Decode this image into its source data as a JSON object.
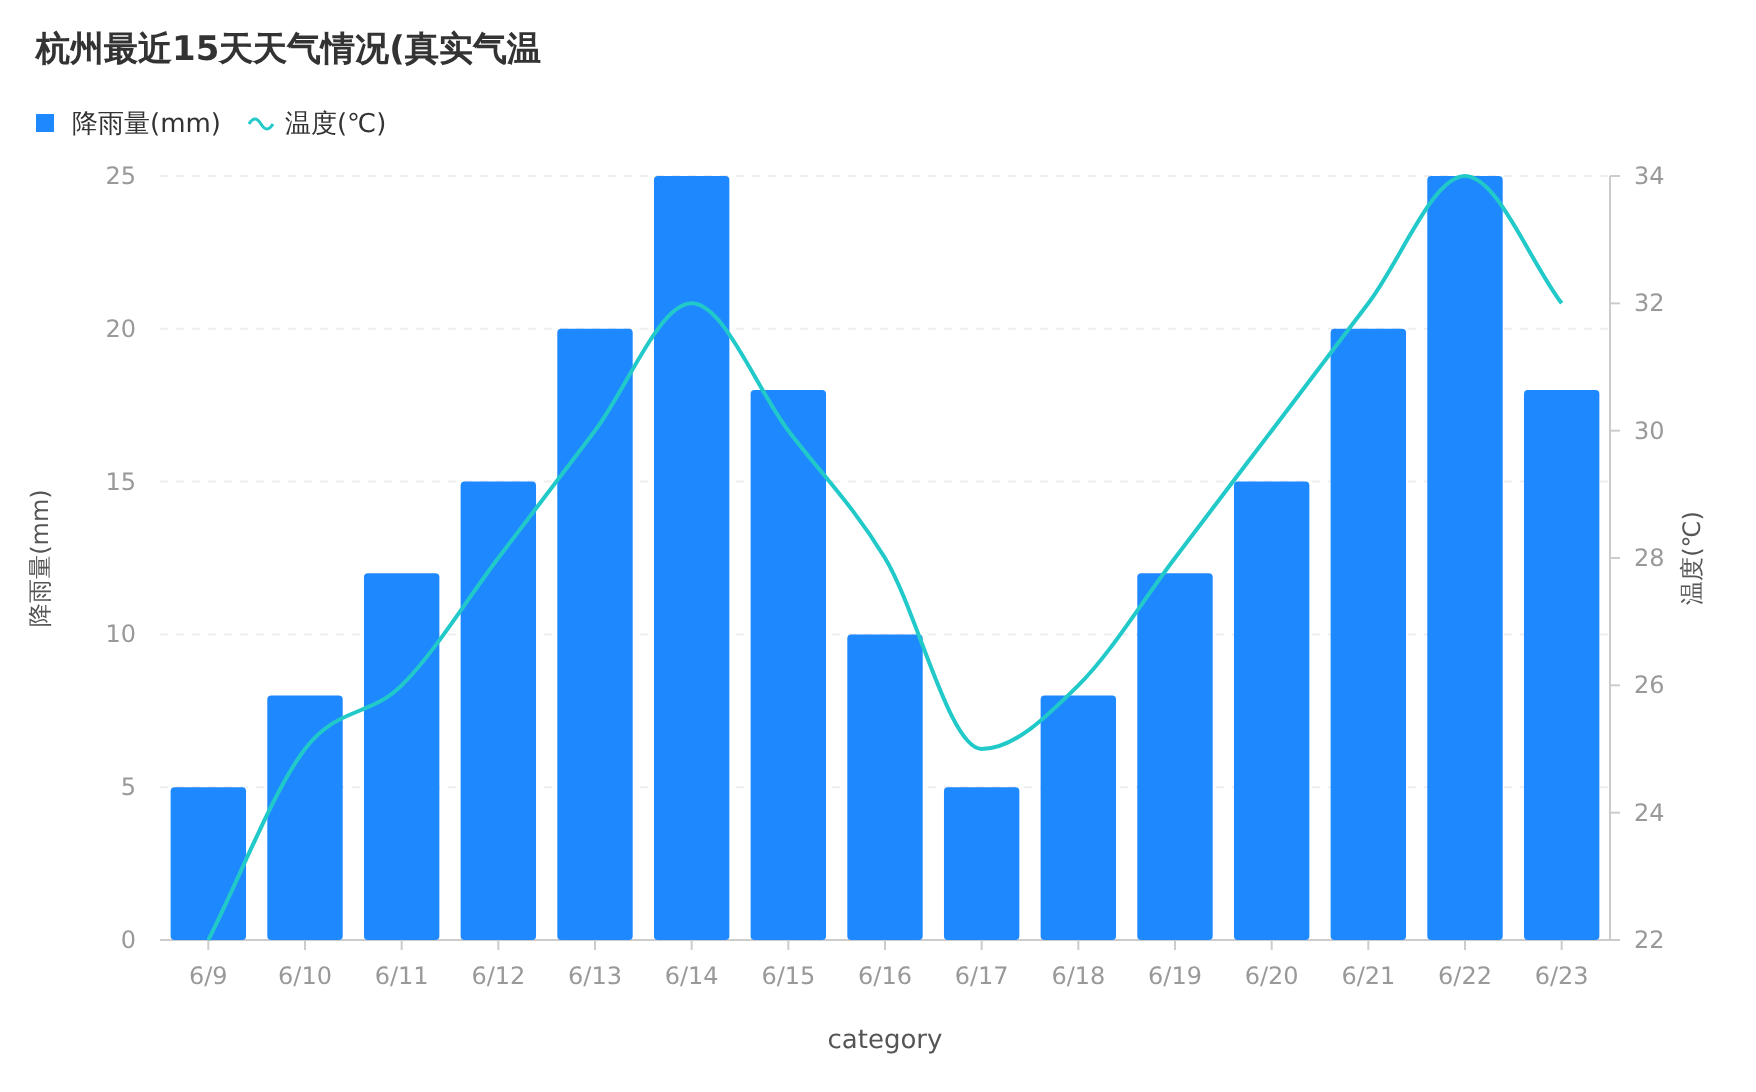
{
  "chart_data": {
    "type": "bar",
    "title": "杭州最近15天天气情况(真实气温",
    "xlabel": "category",
    "ylabel": "降雨量(mm)",
    "y2label": "温度(℃)",
    "categories": [
      "6/9",
      "6/10",
      "6/11",
      "6/12",
      "6/13",
      "6/14",
      "6/15",
      "6/16",
      "6/17",
      "6/18",
      "6/19",
      "6/20",
      "6/21",
      "6/22",
      "6/23"
    ],
    "series": [
      {
        "name": "降雨量(mm)",
        "color": "#1e88ff",
        "values": [
          5,
          8,
          12,
          15,
          20,
          25,
          18,
          10,
          5,
          8,
          12,
          15,
          20,
          25,
          18
        ]
      },
      {
        "name": "温度(℃)",
        "type": "line",
        "axis": "y2",
        "color": "#22c9c9",
        "marker": "none",
        "values": [
          22,
          25,
          26,
          28,
          30,
          32,
          30,
          28,
          25,
          26,
          28,
          30,
          32,
          34,
          32
        ]
      }
    ],
    "ylim": [
      0,
      25
    ],
    "yticks": [
      0,
      5,
      10,
      15,
      20,
      25
    ],
    "y2lim": [
      22,
      34
    ],
    "y2ticks": [
      22,
      24,
      26,
      28,
      30,
      32,
      34
    ],
    "grid": "y",
    "legend": "top left"
  }
}
